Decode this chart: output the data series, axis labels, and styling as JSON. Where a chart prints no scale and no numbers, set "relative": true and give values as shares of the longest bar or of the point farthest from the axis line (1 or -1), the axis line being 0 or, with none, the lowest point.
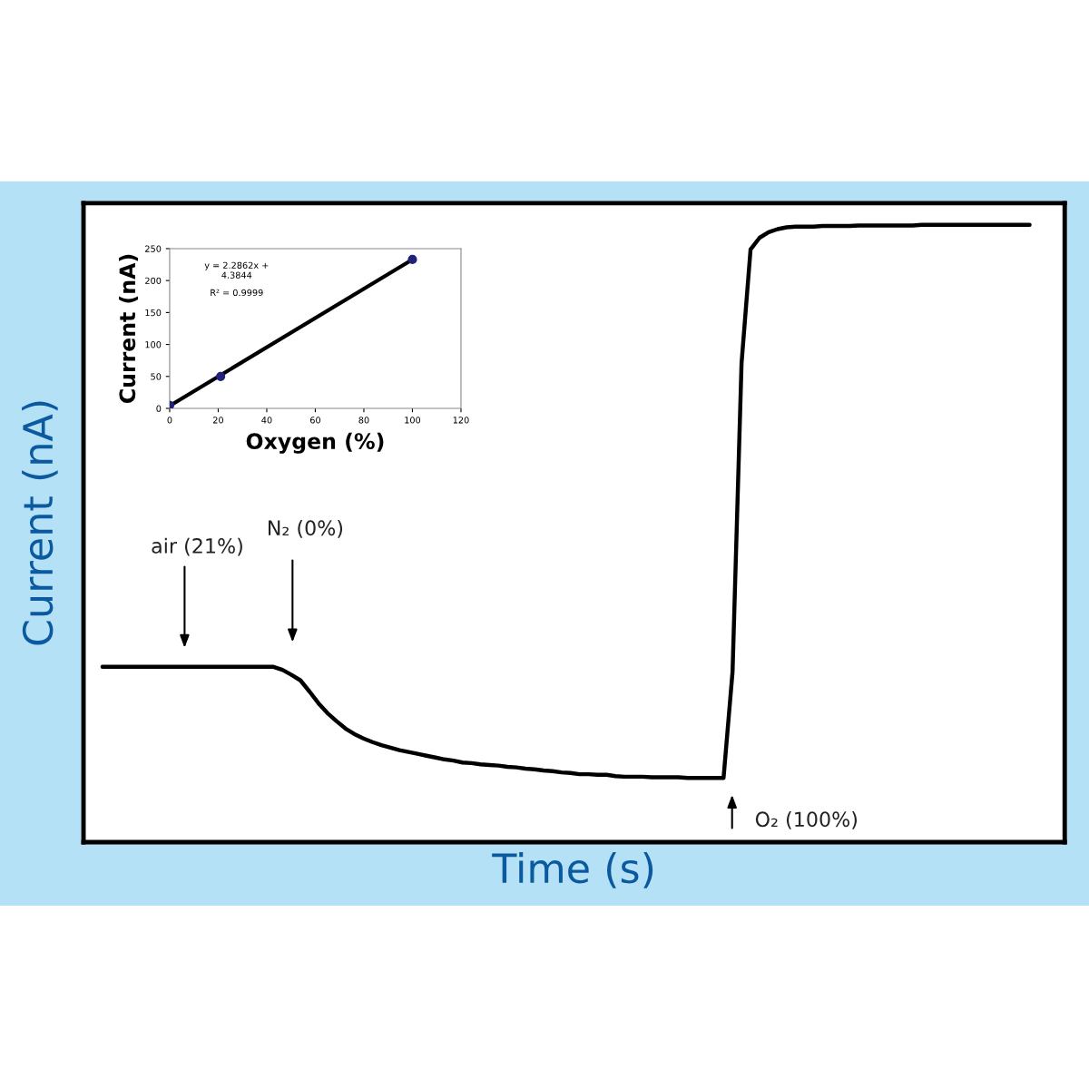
{
  "chart_data": [
    {
      "type": "line",
      "relative": true,
      "xlabel": "Time (s)",
      "ylabel": "Current (nA)",
      "categories": [
        null,
        null,
        null,
        null,
        null,
        null,
        null,
        null,
        null,
        null,
        null,
        null,
        null,
        null,
        null,
        null,
        null,
        null,
        null,
        null,
        null,
        null,
        null,
        null,
        null,
        null,
        null,
        null,
        null,
        null,
        null,
        null,
        null,
        null,
        null,
        null,
        null,
        null,
        null,
        null,
        null,
        null,
        null,
        null,
        null,
        null,
        null,
        null,
        null,
        null,
        null,
        null,
        null,
        null,
        null,
        null,
        null,
        null,
        null,
        null,
        null,
        null,
        null,
        null,
        null,
        null,
        null,
        null,
        null,
        null,
        null,
        null,
        null,
        null,
        null,
        null,
        null,
        null,
        null,
        null,
        null,
        null,
        null,
        null,
        null,
        null,
        null,
        null,
        null,
        null,
        null,
        null,
        null,
        null,
        null,
        null,
        null,
        null,
        null,
        null,
        null,
        null,
        null,
        null
      ],
      "series": [
        {
          "color": "#000000",
          "values": [
            0.284,
            0.284,
            0.284,
            0.284,
            0.284,
            0.284,
            0.284,
            0.284,
            0.284,
            0.284,
            0.284,
            0.284,
            0.284,
            0.284,
            0.284,
            0.284,
            0.284,
            0.284,
            0.284,
            0.284,
            0.279,
            0.271,
            0.262,
            0.244,
            0.225,
            0.209,
            0.196,
            0.184,
            0.175,
            0.168,
            0.162,
            0.157,
            0.153,
            0.149,
            0.146,
            0.143,
            0.14,
            0.137,
            0.134,
            0.132,
            0.129,
            0.128,
            0.126,
            0.125,
            0.124,
            0.122,
            0.121,
            0.119,
            0.118,
            0.116,
            0.115,
            0.113,
            0.112,
            0.11,
            0.11,
            0.109,
            0.109,
            0.107,
            0.106,
            0.106,
            0.106,
            0.105,
            0.105,
            0.105,
            0.105,
            0.104,
            0.104,
            0.104,
            0.104,
            0.104,
            0.276,
            0.776,
            0.96,
            0.979,
            0.988,
            0.993,
            0.996,
            0.997,
            0.997,
            0.997,
            0.998,
            0.998,
            0.998,
            0.998,
            0.999,
            0.999,
            0.999,
            0.999,
            0.999,
            0.999,
            0.999,
            1,
            1,
            1,
            1,
            1,
            1,
            1,
            1,
            1,
            1,
            1,
            1,
            1
          ]
        }
      ],
      "grid": false,
      "legend": false,
      "marker": "none",
      "line_style": "solid",
      "annotations": [
        "air (21%)",
        "N₂ (0%)",
        "O₂ (100%)"
      ]
    },
    {
      "type": "scatter",
      "xlabel": "Oxygen (%)",
      "ylabel": "Current (nA)",
      "series": [
        {
          "type": "scatter",
          "color": "#22227a",
          "x": [
            0,
            21,
            100
          ],
          "values": [
            5,
            50,
            233
          ],
          "marker": "circle"
        },
        {
          "type": "line",
          "color": "#000000",
          "x": [
            0,
            100
          ],
          "values": [
            4,
            233
          ],
          "marker": "none",
          "line_style": "solid"
        }
      ],
      "xlim": [
        0,
        120
      ],
      "xticks": [
        0,
        20,
        40,
        60,
        80,
        100,
        120
      ],
      "ylim": [
        0,
        250
      ],
      "yticks": [
        0,
        50,
        100,
        150,
        200,
        250
      ],
      "grid": false,
      "legend": false,
      "annotations": [
        "y = 2.2862x +\n4.3844",
        "R² = 0.9999"
      ]
    }
  ]
}
